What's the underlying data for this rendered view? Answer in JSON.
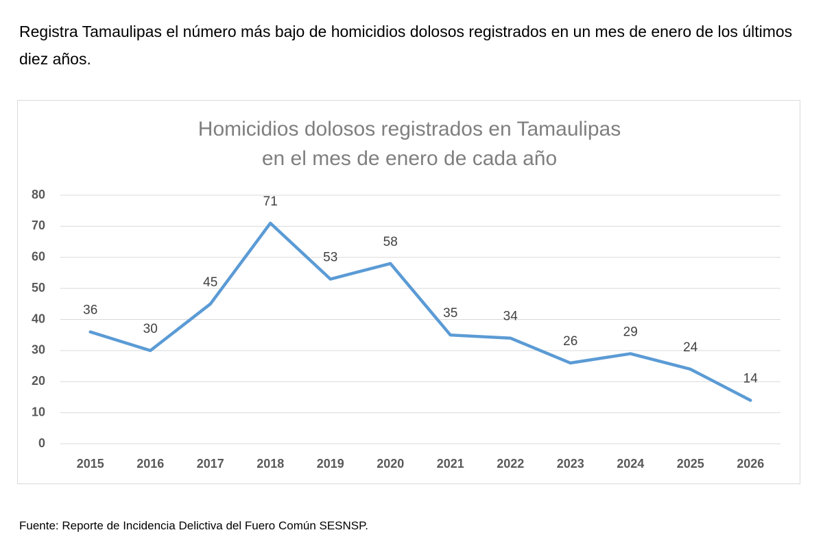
{
  "heading": "Registra Tamaulipas el número más bajo de homicidios dolosos registrados en un mes de enero de los últimos diez años.",
  "source": "Fuente: Reporte de Incidencia Delictiva del Fuero Común SESNSP.",
  "chart_data": {
    "type": "line",
    "title": [
      "Homicidios dolosos registrados en Tamaulipas",
      "en el mes de enero de cada año"
    ],
    "categories": [
      "2015",
      "2016",
      "2017",
      "2018",
      "2019",
      "2020",
      "2021",
      "2022",
      "2023",
      "2024",
      "2025",
      "2026"
    ],
    "values": [
      36,
      30,
      45,
      71,
      53,
      58,
      35,
      34,
      26,
      29,
      24,
      14
    ],
    "color": "#5b9bd5",
    "ylim": [
      0,
      80
    ],
    "yticks": [
      0,
      10,
      20,
      30,
      40,
      50,
      60,
      70,
      80
    ],
    "grid": true
  }
}
